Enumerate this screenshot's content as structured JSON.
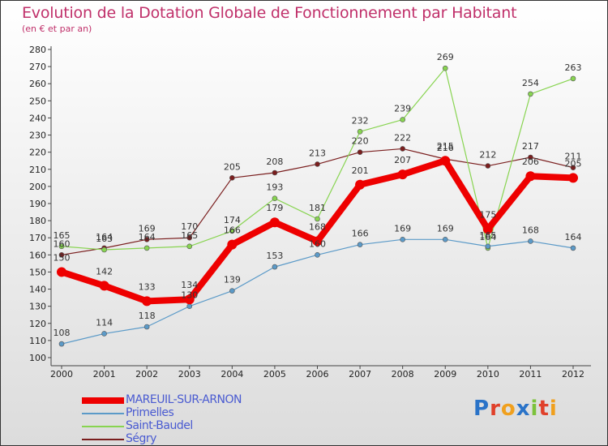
{
  "title": "Evolution de la Dotation Globale de Fonctionnement par Habitant",
  "subtitle": "(en € et par an)",
  "logo": {
    "letters": [
      {
        "ch": "P",
        "color": "#2a73c8"
      },
      {
        "ch": "r",
        "color": "#e0402a"
      },
      {
        "ch": "o",
        "color": "#f0a01e"
      },
      {
        "ch": "x",
        "color": "#2a73c8"
      },
      {
        "ch": "i",
        "color": "#7cc23c"
      },
      {
        "ch": "t",
        "color": "#e0402a"
      },
      {
        "ch": "i",
        "color": "#f0a01e"
      }
    ]
  },
  "chart_data": {
    "type": "line",
    "title": "Evolution de la Dotation Globale de Fonctionnement par Habitant",
    "subtitle": "(en € et par an)",
    "x": [
      "2000",
      "2001",
      "2002",
      "2003",
      "2004",
      "2005",
      "2006",
      "2007",
      "2008",
      "2009",
      "2010",
      "2011",
      "2012"
    ],
    "ylim": [
      100,
      280
    ],
    "yticks": [
      100,
      110,
      120,
      130,
      140,
      150,
      160,
      170,
      180,
      190,
      200,
      210,
      220,
      230,
      240,
      250,
      260,
      270,
      280
    ],
    "grid": false,
    "legend_position": "bottom-left",
    "series": [
      {
        "name": "Ségry",
        "color": "#7a1e1e",
        "values": [
          160,
          164,
          169,
          170,
          205,
          208,
          213,
          220,
          222,
          216,
          212,
          217,
          211
        ]
      },
      {
        "name": "Saint-Baudel",
        "color": "#88d451",
        "values": [
          165,
          163,
          164,
          165,
          174,
          193,
          181,
          232,
          239,
          269,
          164,
          254,
          263
        ]
      },
      {
        "name": "Primelles",
        "color": "#5b9ac8",
        "values": [
          108,
          114,
          118,
          130,
          139,
          153,
          160,
          166,
          169,
          169,
          165,
          168,
          164
        ]
      },
      {
        "name": "MAREUIL-SUR-ARNON",
        "color": "#ee0000",
        "values": [
          150,
          142,
          133,
          134,
          166,
          179,
          168,
          201,
          207,
          215,
          175,
          206,
          205
        ]
      }
    ],
    "legend_order": [
      "MAREUIL-SUR-ARNON",
      "Primelles",
      "Saint-Baudel",
      "Ségry"
    ]
  }
}
